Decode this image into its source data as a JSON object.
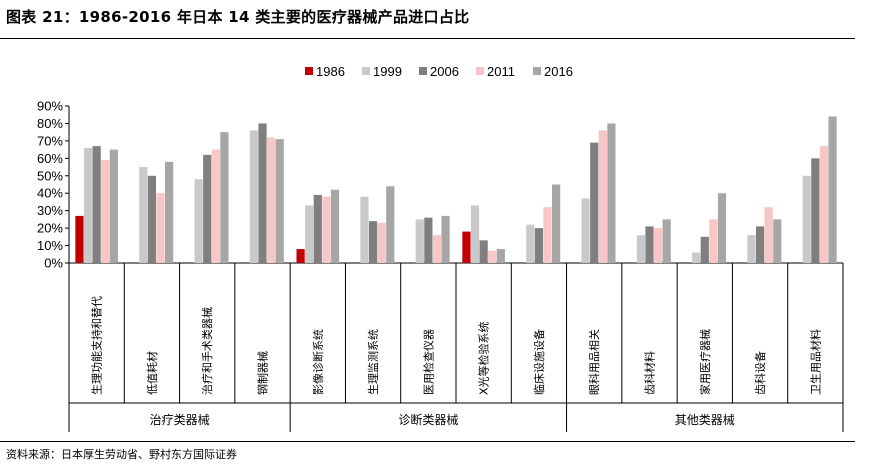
{
  "title": "图表 21：1986-2016 年日本 14 类主要的医疗器械产品进口占比",
  "source": "资料来源：日本厚生劳动省、野村东方国际证券",
  "chart_data": {
    "type": "bar",
    "ylim": [
      0,
      90
    ],
    "y_ticks": [
      "0%",
      "10%",
      "20%",
      "30%",
      "40%",
      "50%",
      "60%",
      "70%",
      "80%",
      "90%"
    ],
    "unit": "%",
    "legend_position": "top-center",
    "grid": false,
    "categories": [
      "生理功能支持和替代",
      "低值耗材",
      "治疗和手术类器械",
      "钢制器械",
      "影像诊断系统",
      "生理监测系统",
      "医用检查仪器",
      "X光等检验系统",
      "临床设施设备",
      "眼科用品相关",
      "齿科材料",
      "家用医疗器械",
      "齿科设备",
      "卫生用品材料"
    ],
    "groups": [
      {
        "name": "治疗类器械",
        "count": 4
      },
      {
        "name": "诊断类器械",
        "count": 5
      },
      {
        "name": "其他类器械",
        "count": 5
      }
    ],
    "series": [
      {
        "name": "1986",
        "color": "#C00000",
        "values": [
          27,
          0,
          0,
          0,
          8,
          0,
          0,
          18,
          0,
          0,
          0,
          0,
          0,
          0
        ]
      },
      {
        "name": "1999",
        "color": "#C9C9C9",
        "values": [
          66,
          55,
          48,
          76,
          33,
          38,
          25,
          33,
          22,
          37,
          16,
          6,
          16,
          50
        ]
      },
      {
        "name": "2006",
        "color": "#7F7F7F",
        "values": [
          67,
          50,
          62,
          80,
          39,
          24,
          26,
          13,
          20,
          69,
          21,
          15,
          21,
          60
        ]
      },
      {
        "name": "2011",
        "color": "#F7C6C7",
        "values": [
          59,
          40,
          65,
          72,
          38,
          23,
          16,
          7,
          32,
          76,
          20,
          25,
          32,
          67
        ]
      },
      {
        "name": "2016",
        "color": "#A6A6A6",
        "values": [
          65,
          58,
          75,
          71,
          42,
          44,
          27,
          8,
          45,
          80,
          25,
          40,
          25,
          84
        ]
      }
    ]
  }
}
